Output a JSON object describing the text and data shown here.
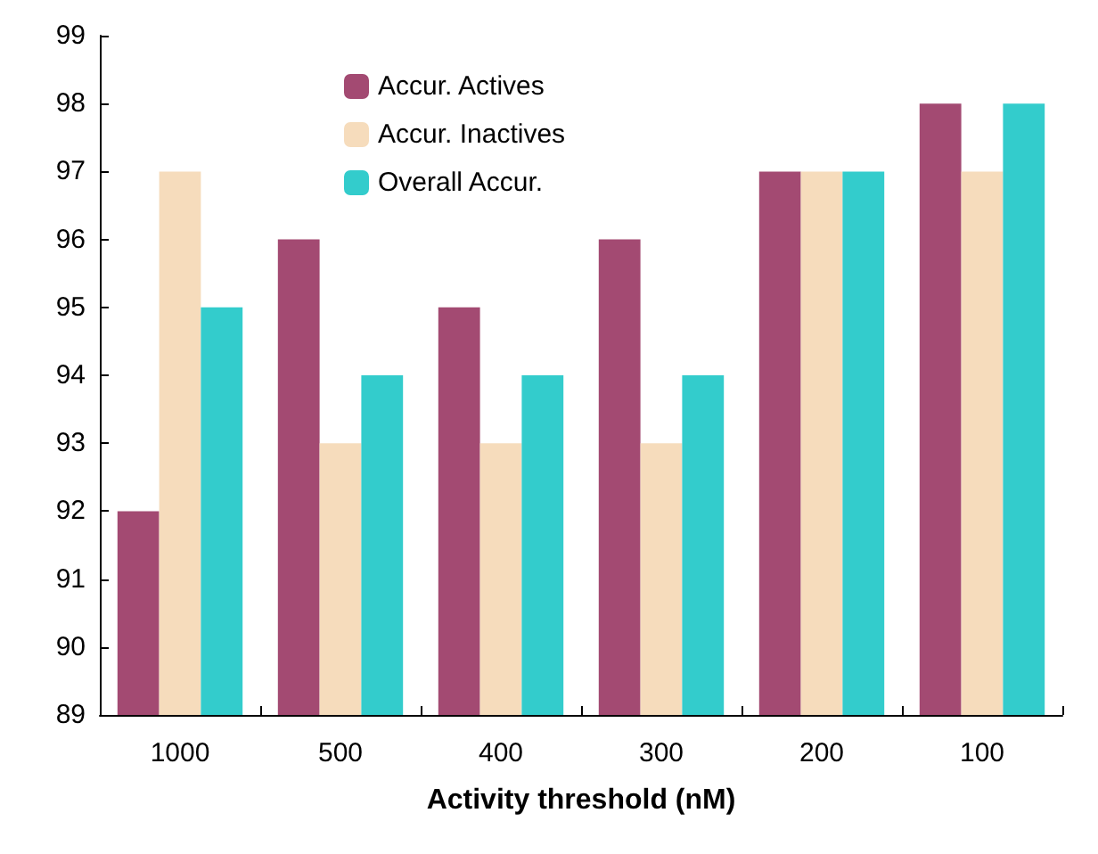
{
  "chart_data": {
    "type": "bar",
    "xlabel": "Activity threshold (nM)",
    "categories": [
      "1000",
      "500",
      "400",
      "300",
      "200",
      "100"
    ],
    "series": [
      {
        "name": "Accur. Actives",
        "color": "#a34a72",
        "values": [
          92,
          96,
          95,
          96,
          97,
          98
        ]
      },
      {
        "name": "Accur. Inactives",
        "color": "#f6dcbc",
        "values": [
          97,
          93,
          93,
          93,
          97,
          97
        ]
      },
      {
        "name": "Overall Accur.",
        "color": "#33cccc",
        "values": [
          95,
          94,
          94,
          94,
          97,
          98
        ]
      }
    ],
    "ylim": [
      89,
      99
    ],
    "yticks": [
      89,
      90,
      91,
      92,
      93,
      94,
      95,
      96,
      97,
      98,
      99
    ],
    "grid": false,
    "legend": "top left"
  }
}
